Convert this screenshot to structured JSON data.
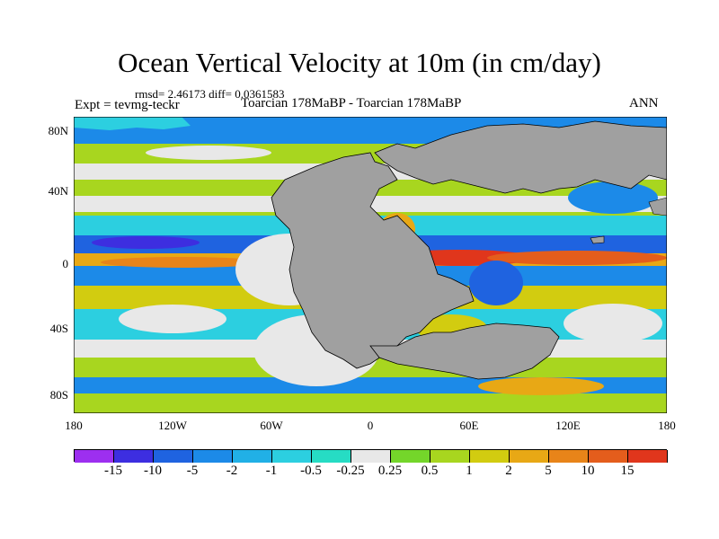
{
  "title": "Ocean Vertical Velocity at 10m (in cm/day)",
  "stats": {
    "rmsd_label": "rmsd=",
    "rmsd": "2.46173",
    "diff_label": "diff=",
    "diff": "0.0361583"
  },
  "expt": "Expt = tevmg-teckr",
  "subtitle": "Toarcian 178MaBP - Toarcian 178MaBP",
  "season": "ANN",
  "map": {
    "projection": "cylindrical equidistant",
    "lon_range": [
      -180,
      180
    ],
    "lat_range": [
      -90,
      90
    ],
    "land_color": "#a0a0a0",
    "y_ticks": [
      "80N",
      "40N",
      "0",
      "40S",
      "80S"
    ],
    "x_ticks": [
      "180",
      "120W",
      "60W",
      "0",
      "60E",
      "120E",
      "180"
    ]
  },
  "colorbar": {
    "labels": [
      "-15",
      "-10",
      "-5",
      "-2",
      "-1",
      "-0.5",
      "-0.25",
      "0.25",
      "0.5",
      "1",
      "2",
      "5",
      "10",
      "15"
    ],
    "colors": [
      "#9d2ff0",
      "#3d2ee0",
      "#1f63e0",
      "#1c8ae8",
      "#21b0e6",
      "#2ccfe0",
      "#26dcc4",
      "#e8e8e8",
      "#74d62a",
      "#a8d61f",
      "#d2cc10",
      "#e8a815",
      "#e88419",
      "#e45d1c",
      "#e0361c"
    ]
  }
}
